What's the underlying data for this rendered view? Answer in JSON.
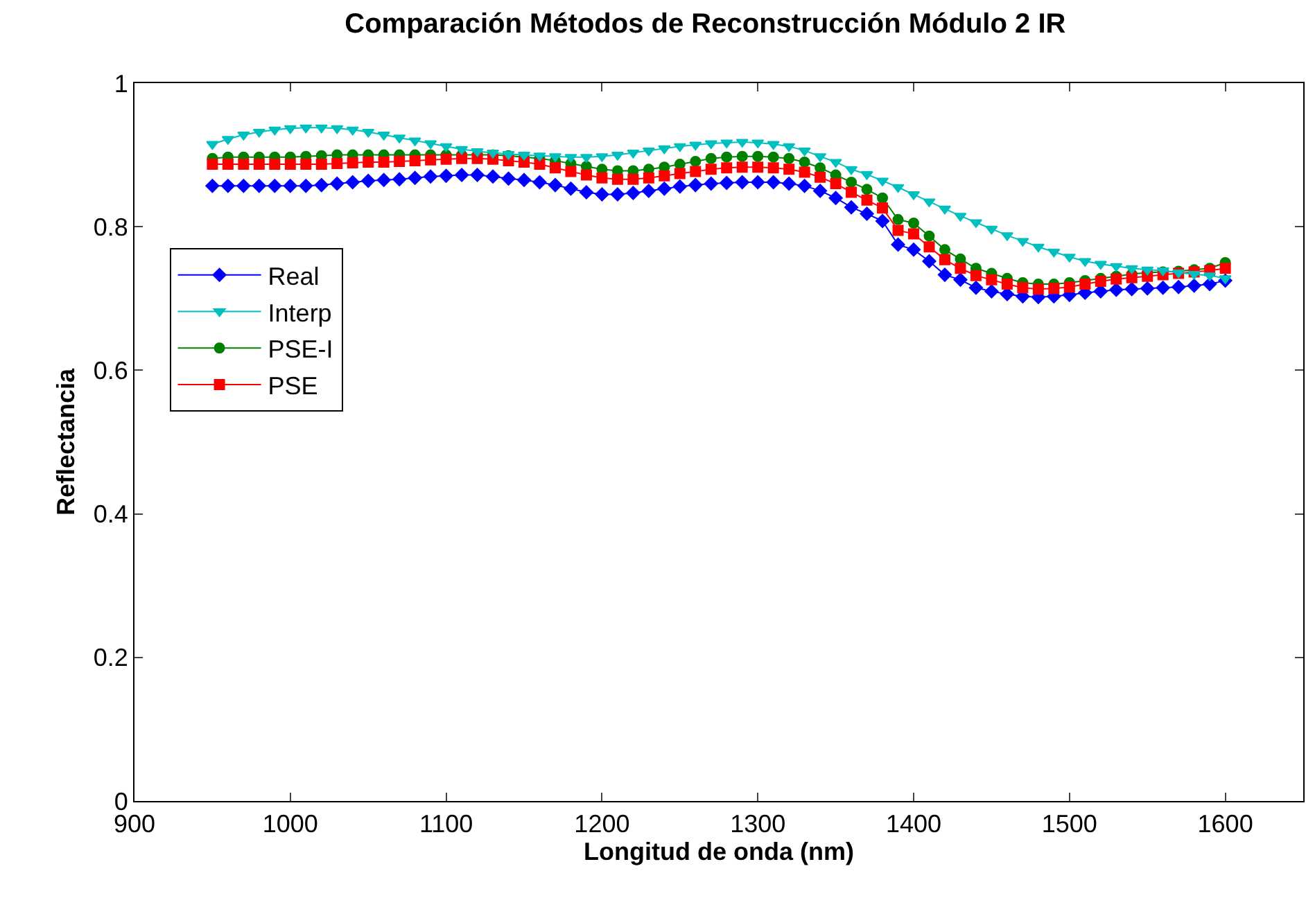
{
  "chart_data": {
    "type": "line",
    "title": "Comparación Métodos de Reconstrucción Módulo 2 IR",
    "xlabel": "Longitud de onda (nm)",
    "ylabel": "Reflectancia",
    "x": [
      950,
      960,
      970,
      980,
      990,
      1000,
      1010,
      1020,
      1030,
      1040,
      1050,
      1060,
      1070,
      1080,
      1090,
      1100,
      1110,
      1120,
      1130,
      1140,
      1150,
      1160,
      1170,
      1180,
      1190,
      1200,
      1210,
      1220,
      1230,
      1240,
      1250,
      1260,
      1270,
      1280,
      1290,
      1300,
      1310,
      1320,
      1330,
      1340,
      1350,
      1360,
      1370,
      1380,
      1390,
      1400,
      1410,
      1420,
      1430,
      1440,
      1450,
      1460,
      1470,
      1480,
      1490,
      1500,
      1510,
      1520,
      1530,
      1540,
      1550,
      1560,
      1570,
      1580,
      1590,
      1600
    ],
    "series": [
      {
        "name": "Real",
        "color": "#0000ff",
        "marker": "diamond",
        "values": [
          0.857,
          0.857,
          0.857,
          0.857,
          0.857,
          0.857,
          0.857,
          0.858,
          0.86,
          0.862,
          0.864,
          0.865,
          0.866,
          0.868,
          0.87,
          0.871,
          0.872,
          0.872,
          0.87,
          0.867,
          0.865,
          0.862,
          0.858,
          0.853,
          0.848,
          0.845,
          0.845,
          0.847,
          0.85,
          0.853,
          0.856,
          0.858,
          0.86,
          0.861,
          0.862,
          0.862,
          0.862,
          0.86,
          0.857,
          0.85,
          0.84,
          0.827,
          0.818,
          0.808,
          0.775,
          0.768,
          0.752,
          0.733,
          0.726,
          0.715,
          0.71,
          0.706,
          0.703,
          0.702,
          0.703,
          0.705,
          0.708,
          0.71,
          0.712,
          0.713,
          0.714,
          0.715,
          0.716,
          0.718,
          0.72,
          0.725
        ]
      },
      {
        "name": "Interp",
        "color": "#00bfbf",
        "marker": "triangle",
        "values": [
          0.915,
          0.922,
          0.928,
          0.932,
          0.935,
          0.937,
          0.938,
          0.938,
          0.937,
          0.935,
          0.932,
          0.928,
          0.924,
          0.92,
          0.916,
          0.912,
          0.908,
          0.905,
          0.903,
          0.901,
          0.9,
          0.899,
          0.898,
          0.897,
          0.897,
          0.898,
          0.9,
          0.903,
          0.906,
          0.909,
          0.912,
          0.914,
          0.916,
          0.917,
          0.918,
          0.917,
          0.915,
          0.912,
          0.906,
          0.898,
          0.89,
          0.88,
          0.873,
          0.864,
          0.855,
          0.845,
          0.835,
          0.825,
          0.815,
          0.806,
          0.797,
          0.788,
          0.78,
          0.772,
          0.765,
          0.758,
          0.752,
          0.748,
          0.745,
          0.742,
          0.74,
          0.739,
          0.736,
          0.734,
          0.732,
          0.728
        ]
      },
      {
        "name": "PSE-I",
        "color": "#008000",
        "marker": "circle",
        "values": [
          0.895,
          0.897,
          0.897,
          0.897,
          0.897,
          0.897,
          0.898,
          0.899,
          0.9,
          0.9,
          0.9,
          0.9,
          0.9,
          0.9,
          0.9,
          0.9,
          0.9,
          0.9,
          0.9,
          0.899,
          0.897,
          0.895,
          0.892,
          0.888,
          0.884,
          0.88,
          0.878,
          0.878,
          0.88,
          0.883,
          0.887,
          0.891,
          0.895,
          0.897,
          0.898,
          0.898,
          0.897,
          0.895,
          0.89,
          0.882,
          0.872,
          0.862,
          0.852,
          0.84,
          0.81,
          0.805,
          0.787,
          0.768,
          0.755,
          0.742,
          0.735,
          0.728,
          0.722,
          0.72,
          0.72,
          0.722,
          0.725,
          0.728,
          0.731,
          0.734,
          0.736,
          0.737,
          0.738,
          0.74,
          0.742,
          0.75
        ]
      },
      {
        "name": "PSE",
        "color": "#ff0000",
        "marker": "square",
        "values": [
          0.887,
          0.887,
          0.887,
          0.887,
          0.887,
          0.887,
          0.887,
          0.887,
          0.888,
          0.889,
          0.89,
          0.89,
          0.891,
          0.892,
          0.893,
          0.894,
          0.895,
          0.895,
          0.894,
          0.892,
          0.89,
          0.887,
          0.882,
          0.877,
          0.872,
          0.868,
          0.866,
          0.866,
          0.868,
          0.871,
          0.874,
          0.877,
          0.88,
          0.882,
          0.883,
          0.883,
          0.882,
          0.88,
          0.876,
          0.869,
          0.86,
          0.848,
          0.837,
          0.826,
          0.795,
          0.79,
          0.772,
          0.754,
          0.742,
          0.732,
          0.726,
          0.72,
          0.715,
          0.713,
          0.714,
          0.716,
          0.72,
          0.724,
          0.727,
          0.729,
          0.731,
          0.733,
          0.735,
          0.737,
          0.739,
          0.742
        ]
      }
    ],
    "xlim": [
      900,
      1650
    ],
    "xticks": [
      900,
      1000,
      1100,
      1200,
      1300,
      1400,
      1500,
      1600
    ],
    "ylim": [
      0,
      1
    ],
    "yticks": [
      0,
      0.2,
      0.4,
      0.6,
      0.8,
      1
    ],
    "grid": false,
    "legend": "left",
    "line_style": "solid"
  }
}
